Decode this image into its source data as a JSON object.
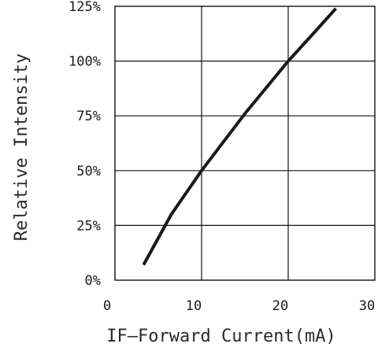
{
  "chart_data": {
    "type": "line",
    "title": "",
    "xlabel": "IF—Forward Current(mA)",
    "ylabel": "Relative Intensity",
    "xlim": [
      0,
      30
    ],
    "ylim": [
      0,
      125
    ],
    "xticks": [
      0,
      10,
      20,
      30
    ],
    "xtick_labels": [
      "0",
      "10",
      "20",
      "30"
    ],
    "yticks": [
      0,
      25,
      50,
      75,
      100,
      125
    ],
    "ytick_labels": [
      "0%",
      "25%",
      "50%",
      "75%",
      "100%",
      "125%"
    ],
    "grid": true,
    "series": [
      {
        "x": [
          3.3,
          6.5,
          10,
          12.5,
          15,
          17.5,
          20,
          23,
          25.5
        ],
        "y": [
          7,
          30,
          50,
          63,
          76,
          88,
          100,
          113,
          124
        ]
      }
    ]
  }
}
